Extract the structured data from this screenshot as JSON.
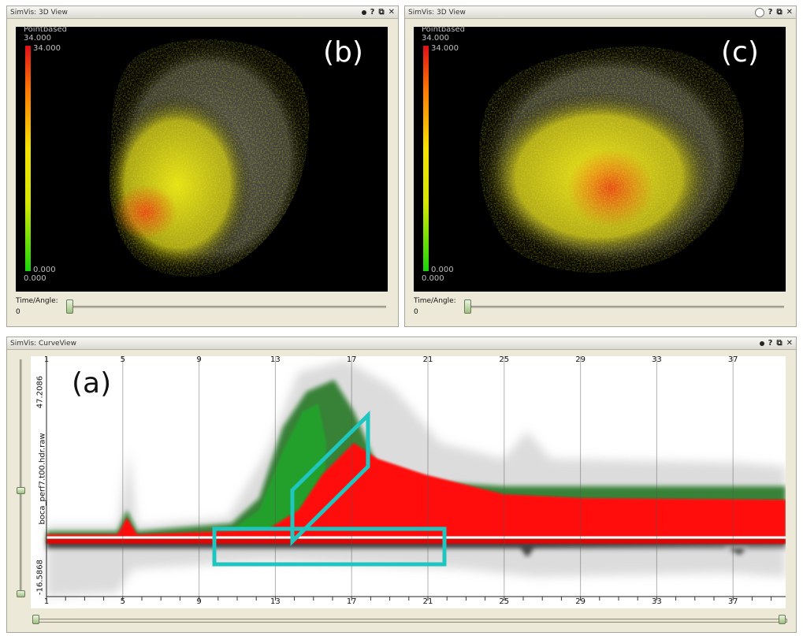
{
  "views": [
    {
      "title": "SimVis: 3D View",
      "legend_title": "Pointbased",
      "legend_max_outer": "34.000",
      "legend_max_inner": "34.000",
      "legend_min_inner": "0.000",
      "legend_min_outer": "0.000",
      "label": "(b)",
      "slider_label": "Time/Angle:",
      "slider_value": "0"
    },
    {
      "title": "SimVis: 3D View",
      "legend_title": "Pointbased",
      "legend_max_outer": "34.000",
      "legend_max_inner": "34.000",
      "legend_min_inner": "0.000",
      "legend_min_outer": "0.000",
      "label": "(c)",
      "slider_label": "Time/Angle:",
      "slider_value": "0"
    }
  ],
  "curve_view": {
    "title": "SimVis: CurveView",
    "label": "(a)",
    "y_axis_name": "boca_perf7.t00.hdr.raw",
    "y_max_label": "47.2086",
    "y_min_label": "-16.5868",
    "x_ticks": [
      "1",
      "5",
      "9",
      "13",
      "17",
      "21",
      "25",
      "29",
      "33",
      "37"
    ]
  },
  "title_buttons": {
    "help": "?",
    "restore": "⧉",
    "close": "✕"
  },
  "colors": {
    "selection": "#1fc6c0",
    "focus_red": "#ff0000",
    "context_green": "#0b8a12",
    "background_3d": "#000000"
  }
}
